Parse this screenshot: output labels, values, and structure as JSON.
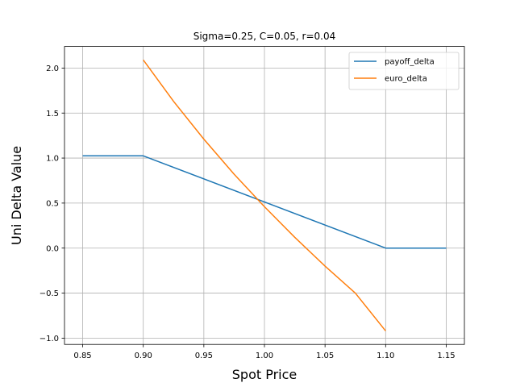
{
  "chart_data": {
    "type": "line",
    "title": "Sigma=0.25, C=0.05, r=0.04",
    "xlabel": "Spot Price",
    "ylabel": "Uni Delta Value",
    "xlim": [
      0.835,
      1.165
    ],
    "ylim": [
      -1.07,
      2.24
    ],
    "xticks": [
      0.85,
      0.9,
      0.95,
      1.0,
      1.05,
      1.1,
      1.15
    ],
    "xtick_labels": [
      "0.85",
      "0.90",
      "0.95",
      "1.00",
      "1.05",
      "1.10",
      "1.15"
    ],
    "yticks": [
      -1.0,
      -0.5,
      0.0,
      0.5,
      1.0,
      1.5,
      2.0
    ],
    "ytick_labels": [
      "−1.0",
      "−0.5",
      "0.0",
      "0.5",
      "1.0",
      "1.5",
      "2.0"
    ],
    "grid": true,
    "legend_position": "top-right",
    "series": [
      {
        "name": "payoff_delta",
        "color": "#1f77b4",
        "x": [
          0.85,
          0.9,
          1.1,
          1.15
        ],
        "y": [
          1.025,
          1.025,
          0.0,
          0.0
        ]
      },
      {
        "name": "euro_delta",
        "color": "#ff7f0e",
        "x": [
          0.9,
          0.925,
          0.95,
          0.975,
          1.0,
          1.025,
          1.05,
          1.075,
          1.1
        ],
        "y": [
          2.09,
          1.63,
          1.21,
          0.82,
          0.46,
          0.12,
          -0.2,
          -0.5,
          -0.92
        ]
      }
    ]
  }
}
